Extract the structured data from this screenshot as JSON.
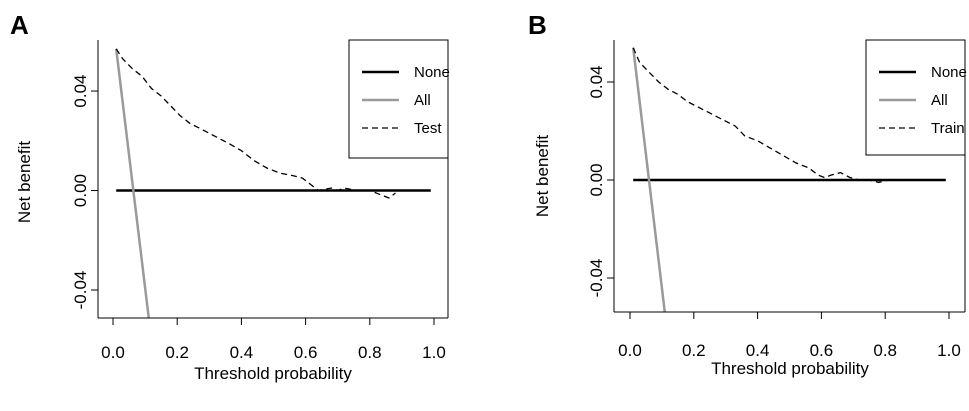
{
  "chart_data": [
    {
      "panel_label": "A",
      "type": "line",
      "xlabel": "Threshold probability",
      "ylabel": "Net benefit",
      "xlim": [
        0.0,
        1.0
      ],
      "ylim": [
        -0.055,
        0.061
      ],
      "xticks": [
        "0.0",
        "0.2",
        "0.4",
        "0.6",
        "0.8",
        "1.0"
      ],
      "xtick_values": [
        0.0,
        0.2,
        0.4,
        0.6,
        0.8,
        1.0
      ],
      "yticks": [
        "-0.04",
        "0.00",
        "0.04"
      ],
      "ytick_values": [
        -0.04,
        0.0,
        0.04
      ],
      "legend_position": "top-right",
      "series": [
        {
          "name": "None",
          "color": "#000000",
          "dash": "solid",
          "width": 2.5,
          "x": [
            0.01,
            0.99
          ],
          "y": [
            0.0,
            0.0
          ]
        },
        {
          "name": "All",
          "color": "#9a9a9a",
          "dash": "solid",
          "width": 2.5,
          "x": [
            0.01,
            0.115
          ],
          "y": [
            0.057,
            -0.055
          ]
        },
        {
          "name": "Test",
          "color": "#000000",
          "dash": "dashed",
          "width": 1.3,
          "x": [
            0.01,
            0.03,
            0.06,
            0.09,
            0.12,
            0.15,
            0.18,
            0.21,
            0.24,
            0.27,
            0.3,
            0.33,
            0.36,
            0.4,
            0.44,
            0.48,
            0.52,
            0.56,
            0.59,
            0.62,
            0.64,
            0.66,
            0.68,
            0.7,
            0.72,
            0.74,
            0.76,
            0.78,
            0.8,
            0.82,
            0.84,
            0.86,
            0.88
          ],
          "y": [
            0.057,
            0.053,
            0.049,
            0.046,
            0.041,
            0.038,
            0.034,
            0.03,
            0.027,
            0.025,
            0.023,
            0.021,
            0.019,
            0.016,
            0.012,
            0.009,
            0.007,
            0.006,
            0.005,
            0.002,
            0.0,
            0.0005,
            0.001,
            0.0,
            0.001,
            0.0005,
            0.0,
            0.0002,
            0.0,
            -0.001,
            -0.002,
            -0.003,
            -0.001
          ]
        }
      ]
    },
    {
      "panel_label": "B",
      "type": "line",
      "xlabel": "Threshold probability",
      "ylabel": "Net benefit",
      "xlim": [
        0.0,
        1.0
      ],
      "ylim": [
        -0.055,
        0.057
      ],
      "xticks": [
        "0.0",
        "0.2",
        "0.4",
        "0.6",
        "0.8",
        "1.0"
      ],
      "xtick_values": [
        0.0,
        0.2,
        0.4,
        0.6,
        0.8,
        1.0
      ],
      "yticks": [
        "-0.04",
        "0.00",
        "0.04"
      ],
      "ytick_values": [
        -0.04,
        0.0,
        0.04
      ],
      "legend_position": "top-right",
      "series": [
        {
          "name": "None",
          "color": "#000000",
          "dash": "solid",
          "width": 2.5,
          "x": [
            0.01,
            0.99
          ],
          "y": [
            0.0,
            0.0
          ]
        },
        {
          "name": "All",
          "color": "#9a9a9a",
          "dash": "solid",
          "width": 2.5,
          "x": [
            0.01,
            0.11
          ],
          "y": [
            0.054,
            -0.055
          ]
        },
        {
          "name": "Train",
          "color": "#000000",
          "dash": "dashed",
          "width": 1.3,
          "x": [
            0.01,
            0.03,
            0.06,
            0.09,
            0.12,
            0.15,
            0.18,
            0.21,
            0.24,
            0.27,
            0.3,
            0.33,
            0.36,
            0.4,
            0.44,
            0.48,
            0.52,
            0.56,
            0.59,
            0.61,
            0.63,
            0.66,
            0.69,
            0.72,
            0.75,
            0.78,
            0.81,
            0.84,
            0.86
          ],
          "y": [
            0.054,
            0.048,
            0.044,
            0.04,
            0.037,
            0.035,
            0.032,
            0.03,
            0.028,
            0.026,
            0.024,
            0.022,
            0.018,
            0.016,
            0.013,
            0.01,
            0.007,
            0.005,
            0.002,
            0.001,
            0.002,
            0.003,
            0.001,
            0.0,
            0.0,
            -0.001,
            0.0,
            0.0,
            -0.0005
          ]
        }
      ]
    }
  ]
}
